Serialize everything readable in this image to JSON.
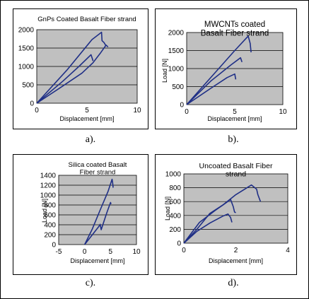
{
  "colors": {
    "plot_bg": "#c0c0c0",
    "series": "#1f2f86",
    "grid": "#000000",
    "border": "#000000"
  },
  "captions": [
    "a).",
    "b).",
    "c).",
    "d)."
  ],
  "chart_data": [
    {
      "type": "line",
      "title": "GnPs Coated Basalt Fiber strand",
      "xlabel": "Displacement [mm]",
      "ylabel": "",
      "xlim": [
        0,
        10
      ],
      "ylim": [
        0,
        2000
      ],
      "xticks": [
        0,
        5,
        10
      ],
      "yticks": [
        0,
        500,
        1000,
        1500,
        2000
      ],
      "grid": "horizontal",
      "series": [
        {
          "x": [
            0,
            3.0,
            5.5,
            6.45,
            6.5,
            6.7,
            6.9
          ],
          "y": [
            0,
            900,
            1730,
            1930,
            1700,
            1650,
            1560
          ]
        },
        {
          "x": [
            0,
            2.5,
            4.5,
            5.6,
            6.3,
            6.9,
            7.1
          ],
          "y": [
            0,
            450,
            820,
            1100,
            1350,
            1580,
            1530
          ]
        },
        {
          "x": [
            0,
            2.6,
            4.2,
            5.4,
            5.55,
            5.6
          ],
          "y": [
            0,
            600,
            1000,
            1320,
            1200,
            1150
          ]
        }
      ]
    },
    {
      "type": "line",
      "title": "MWCNTs coated Basalt Fiber strand",
      "xlabel": "Displacement [mm]",
      "ylabel": "Load [N]",
      "xlim": [
        0,
        10
      ],
      "ylim": [
        0,
        2000
      ],
      "xticks": [
        0,
        5,
        10
      ],
      "yticks": [
        0,
        500,
        1000,
        1500,
        2000
      ],
      "grid": "horizontal",
      "series": [
        {
          "x": [
            0,
            3.0,
            5.0,
            6.4,
            6.5,
            6.6,
            6.7
          ],
          "y": [
            0,
            900,
            1500,
            1900,
            1800,
            1700,
            1450
          ]
        },
        {
          "x": [
            0,
            2.5,
            4.6,
            5.6,
            5.75
          ],
          "y": [
            0,
            650,
            1100,
            1300,
            1180
          ]
        },
        {
          "x": [
            0,
            2.5,
            4.2,
            5.0,
            5.1
          ],
          "y": [
            0,
            450,
            750,
            850,
            700
          ]
        }
      ]
    },
    {
      "type": "line",
      "title": "Silica coated Basalt Fiber strand",
      "xlabel": "Displacement [mm]",
      "ylabel": "Load [N]",
      "xlim": [
        -5,
        10
      ],
      "ylim": [
        0,
        1400
      ],
      "xticks": [
        -5,
        0,
        5,
        10
      ],
      "yticks": [
        0,
        200,
        400,
        600,
        800,
        1000,
        1200,
        1400
      ],
      "grid": "horizontal",
      "series": [
        {
          "x": [
            0,
            1.5,
            3.0,
            4.5,
            5.3,
            5.4,
            5.5
          ],
          "y": [
            0,
            320,
            700,
            1070,
            1320,
            1250,
            1150
          ]
        },
        {
          "x": [
            0,
            1.5,
            2.7,
            3.0,
            3.2,
            4.3,
            5.0,
            5.1
          ],
          "y": [
            0,
            200,
            360,
            410,
            300,
            650,
            850,
            820
          ]
        }
      ]
    },
    {
      "type": "line",
      "title": "Uncoated Basalt Fiber strand",
      "xlabel": "Displacement [mm]",
      "ylabel": "Load [N]",
      "xlim": [
        0,
        4
      ],
      "ylim": [
        0,
        1000
      ],
      "xticks": [
        0,
        2,
        4
      ],
      "yticks": [
        0,
        200,
        400,
        600,
        800,
        1000
      ],
      "grid": "horizontal",
      "series": [
        {
          "x": [
            0,
            0.5,
            1.0,
            1.5,
            2.0,
            2.6,
            2.8,
            2.85,
            2.95
          ],
          "y": [
            0,
            200,
            430,
            550,
            700,
            840,
            780,
            700,
            600
          ]
        },
        {
          "x": [
            0,
            0.6,
            1.2,
            1.8,
            1.9,
            1.95,
            2.0
          ],
          "y": [
            0,
            300,
            470,
            630,
            530,
            450,
            440
          ]
        },
        {
          "x": [
            0,
            0.5,
            1.0,
            1.5,
            1.7,
            1.8,
            1.85
          ],
          "y": [
            0,
            170,
            290,
            390,
            420,
            370,
            300
          ]
        }
      ]
    }
  ]
}
